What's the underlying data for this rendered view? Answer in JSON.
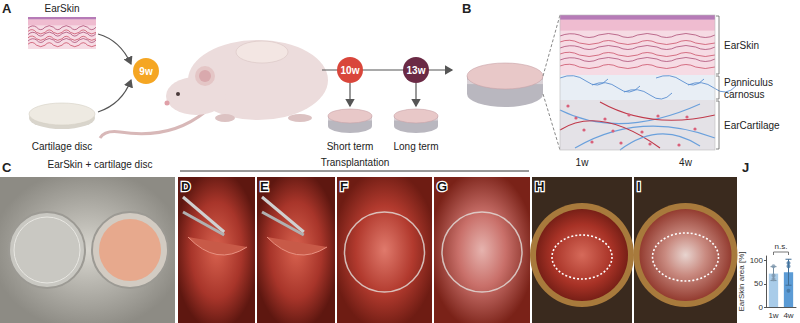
{
  "figure": {
    "A": {
      "label": "A",
      "skin": "EarSkin",
      "disc": "Cartilage disc",
      "implant": "9w",
      "timepoints": [
        "10w",
        "13w"
      ],
      "outcomes": [
        "Short term",
        "Long term"
      ]
    },
    "B": {
      "label": "B",
      "layers": [
        "EarSkin",
        "Panniculus carnosus",
        "EarCartilage"
      ]
    },
    "C": {
      "label": "C",
      "caption": "EarSkin + cartilage disc"
    },
    "transplantation": {
      "caption": "Transplantation",
      "panels": [
        "D",
        "E",
        "F",
        "G"
      ]
    },
    "H": {
      "label": "H",
      "caption": "1w"
    },
    "I": {
      "label": "I",
      "caption": "4w"
    },
    "J": {
      "label": "J"
    }
  },
  "chart_data": {
    "type": "bar",
    "categories": [
      "1w",
      "4w"
    ],
    "values": [
      72,
      75
    ],
    "errors": [
      15,
      28
    ],
    "points": [
      [
        88,
        60,
        68
      ],
      [
        95,
        88,
        35
      ]
    ],
    "colors": [
      "#a9cce9",
      "#5b9bd5"
    ],
    "y_label": "EarSkin area [%]",
    "ylim": [
      0,
      110
    ],
    "yticks": [
      0,
      50,
      100
    ],
    "annotation": "n.s.",
    "grid": false
  }
}
